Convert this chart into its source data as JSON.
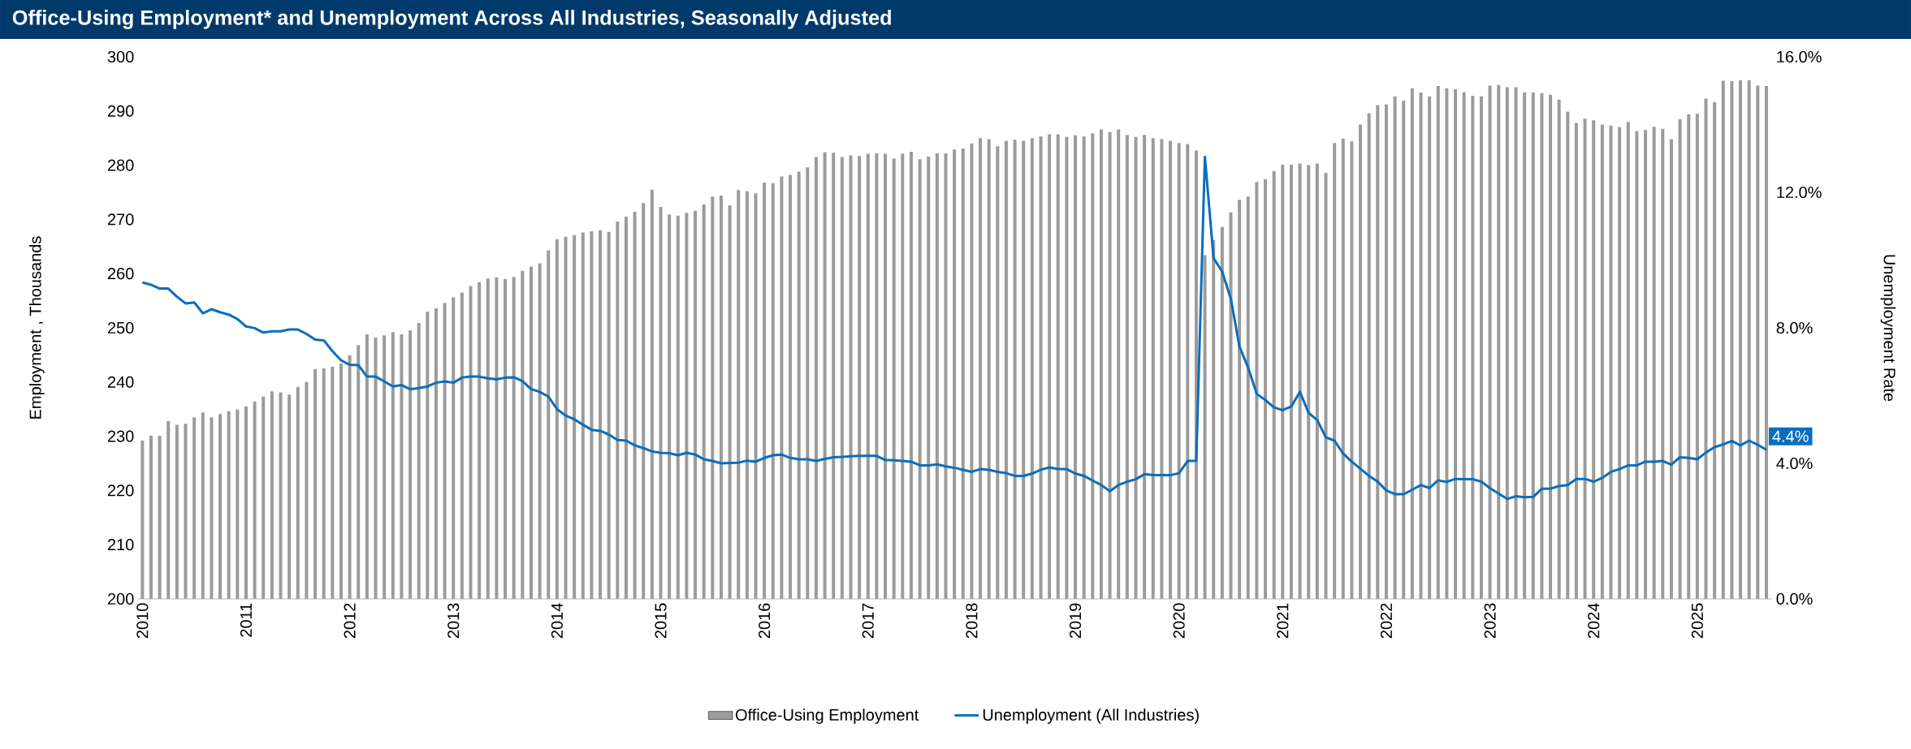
{
  "chart_data": {
    "type": "bar",
    "title": "Office-Using Employment* and Unemployment Across All Industries, Seasonally Adjusted",
    "ylabel": "Employment , Thousands",
    "y2label": "Unemployment Rate",
    "x": [
      "2010-01",
      "2010-02",
      "2010-03",
      "2010-04",
      "2010-05",
      "2010-06",
      "2010-07",
      "2010-08",
      "2010-09",
      "2010-10",
      "2010-11",
      "2010-12",
      "2011-01",
      "2011-02",
      "2011-03",
      "2011-04",
      "2011-05",
      "2011-06",
      "2011-07",
      "2011-08",
      "2011-09",
      "2011-10",
      "2011-11",
      "2011-12",
      "2012-01",
      "2012-02",
      "2012-03",
      "2012-04",
      "2012-05",
      "2012-06",
      "2012-07",
      "2012-08",
      "2012-09",
      "2012-10",
      "2012-11",
      "2012-12",
      "2013-01",
      "2013-02",
      "2013-03",
      "2013-04",
      "2013-05",
      "2013-06",
      "2013-07",
      "2013-08",
      "2013-09",
      "2013-10",
      "2013-11",
      "2013-12",
      "2014-01",
      "2014-02",
      "2014-03",
      "2014-04",
      "2014-05",
      "2014-06",
      "2014-07",
      "2014-08",
      "2014-09",
      "2014-10",
      "2014-11",
      "2014-12",
      "2015-01",
      "2015-02",
      "2015-03",
      "2015-04",
      "2015-05",
      "2015-06",
      "2015-07",
      "2015-08",
      "2015-09",
      "2015-10",
      "2015-11",
      "2015-12",
      "2016-01",
      "2016-02",
      "2016-03",
      "2016-04",
      "2016-05",
      "2016-06",
      "2016-07",
      "2016-08",
      "2016-09",
      "2016-10",
      "2016-11",
      "2016-12",
      "2017-01",
      "2017-02",
      "2017-03",
      "2017-04",
      "2017-05",
      "2017-06",
      "2017-07",
      "2017-08",
      "2017-09",
      "2017-10",
      "2017-11",
      "2017-12",
      "2018-01",
      "2018-02",
      "2018-03",
      "2018-04",
      "2018-05",
      "2018-06",
      "2018-07",
      "2018-08",
      "2018-09",
      "2018-10",
      "2018-11",
      "2018-12",
      "2019-01",
      "2019-02",
      "2019-03",
      "2019-04",
      "2019-05",
      "2019-06",
      "2019-07",
      "2019-08",
      "2019-09",
      "2019-10",
      "2019-11",
      "2019-12",
      "2020-01",
      "2020-02",
      "2020-03",
      "2020-04",
      "2020-05",
      "2020-06",
      "2020-07",
      "2020-08",
      "2020-09",
      "2020-10",
      "2020-11",
      "2020-12",
      "2021-01",
      "2021-02",
      "2021-03",
      "2021-04",
      "2021-05",
      "2021-06",
      "2021-07",
      "2021-08",
      "2021-09",
      "2021-10",
      "2021-11",
      "2021-12",
      "2022-01",
      "2022-02",
      "2022-03",
      "2022-04",
      "2022-05",
      "2022-06",
      "2022-07",
      "2022-08",
      "2022-09",
      "2022-10",
      "2022-11",
      "2022-12",
      "2023-01",
      "2023-02",
      "2023-03",
      "2023-04",
      "2023-05",
      "2023-06",
      "2023-07",
      "2023-08",
      "2023-09",
      "2023-10",
      "2023-11",
      "2023-12",
      "2024-01",
      "2024-02",
      "2024-03",
      "2024-04",
      "2024-05",
      "2024-06",
      "2024-07",
      "2024-08",
      "2024-09",
      "2024-10",
      "2024-11",
      "2024-12",
      "2025-01",
      "2025-02",
      "2025-03",
      "2025-04",
      "2025-05",
      "2025-06",
      "2025-07",
      "2025-08",
      "2025-09"
    ],
    "xlim": [
      "2009-12-16",
      "2025-09-21"
    ],
    "xticks": [
      "2010",
      "2011",
      "2012",
      "2013",
      "2014",
      "2015",
      "2016",
      "2017",
      "2018",
      "2019",
      "2020",
      "2021",
      "2022",
      "2023",
      "2024",
      "2025"
    ],
    "ylim": [
      200,
      300
    ],
    "yticks": [
      200,
      210,
      220,
      230,
      240,
      250,
      260,
      270,
      280,
      290,
      300
    ],
    "y2lim": [
      0,
      16
    ],
    "y2ticks": [
      {
        "value": 0,
        "label": "0.0%"
      },
      {
        "value": 4,
        "label": "4.0%"
      },
      {
        "value": 8,
        "label": "8.0%"
      },
      {
        "value": 12,
        "label": "12.0%"
      },
      {
        "value": 16,
        "label": "16.0%"
      }
    ],
    "series": [
      {
        "name": "Office-Using Employment",
        "color": "#9b9b9b",
        "values": [
          229.2,
          230.1,
          230.1,
          232.8,
          232.1,
          232.3,
          233.5,
          234.4,
          233.5,
          234.1,
          234.6,
          234.9,
          235.5,
          236.4,
          237.3,
          238.3,
          238.1,
          237.7,
          239.1,
          240.0,
          242.4,
          242.5,
          242.8,
          243.4,
          244.9,
          246.8,
          248.8,
          248.2,
          248.6,
          249.2,
          248.8,
          249.5,
          250.9,
          253.0,
          253.6,
          254.6,
          255.6,
          256.5,
          257.7,
          258.4,
          259.1,
          259.3,
          259.0,
          259.4,
          260.5,
          261.3,
          261.9,
          264.3,
          266.3,
          266.8,
          267.1,
          267.6,
          267.8,
          268.0,
          267.7,
          269.6,
          270.5,
          271.4,
          273.0,
          275.5,
          272.3,
          270.9,
          270.7,
          271.2,
          271.6,
          272.8,
          274.2,
          274.4,
          272.6,
          275.4,
          275.2,
          274.8,
          276.8,
          276.7,
          277.9,
          278.2,
          278.8,
          279.6,
          281.5,
          282.4,
          282.3,
          281.5,
          281.8,
          281.7,
          282.1,
          282.2,
          282.1,
          281.2,
          282.1,
          282.5,
          281.1,
          281.6,
          282.2,
          282.2,
          282.9,
          283.1,
          284.0,
          285.0,
          284.8,
          283.5,
          284.5,
          284.7,
          284.5,
          285.0,
          285.3,
          285.7,
          285.7,
          285.2,
          285.5,
          285.3,
          285.9,
          286.6,
          286.1,
          286.6,
          285.6,
          285.2,
          285.6,
          285.0,
          284.8,
          284.5,
          284.1,
          283.9,
          282.7,
          263.4,
          266.2,
          268.6,
          271.3,
          273.6,
          274.2,
          276.9,
          277.4,
          278.9,
          280.1,
          280.1,
          280.3,
          280.0,
          280.3,
          278.6,
          284.1,
          284.9,
          284.4,
          287.5,
          289.6,
          291.1,
          291.2,
          292.7,
          291.9,
          294.2,
          293.4,
          292.7,
          294.6,
          294.2,
          294.0,
          293.5,
          292.8,
          292.7,
          294.7,
          294.8,
          294.4,
          294.4,
          293.4,
          293.4,
          293.3,
          293.0,
          292.1,
          289.9,
          287.8,
          288.6,
          288.3,
          287.5,
          287.3,
          287.0,
          288.0,
          286.3,
          286.5,
          287.1,
          286.7,
          284.8,
          288.5,
          289.4,
          289.5,
          292.3,
          291.6,
          295.6,
          295.5,
          295.7,
          295.7,
          294.7,
          294.6
        ]
      },
      {
        "name": "Unemployment (All Industries)",
        "type": "line",
        "axis": "y2",
        "color": "#0a6ebd",
        "values": [
          9.34,
          9.27,
          9.16,
          9.16,
          8.92,
          8.72,
          8.75,
          8.43,
          8.55,
          8.46,
          8.39,
          8.26,
          8.04,
          7.99,
          7.86,
          7.9,
          7.9,
          7.95,
          7.95,
          7.82,
          7.65,
          7.63,
          7.31,
          7.04,
          6.91,
          6.9,
          6.56,
          6.56,
          6.42,
          6.27,
          6.31,
          6.19,
          6.22,
          6.27,
          6.38,
          6.42,
          6.38,
          6.53,
          6.56,
          6.56,
          6.51,
          6.48,
          6.53,
          6.54,
          6.43,
          6.19,
          6.11,
          5.97,
          5.6,
          5.41,
          5.3,
          5.14,
          4.99,
          4.96,
          4.85,
          4.69,
          4.67,
          4.53,
          4.45,
          4.35,
          4.31,
          4.3,
          4.24,
          4.31,
          4.26,
          4.12,
          4.07,
          4.0,
          4.01,
          4.02,
          4.08,
          4.05,
          4.16,
          4.24,
          4.26,
          4.16,
          4.12,
          4.12,
          4.07,
          4.13,
          4.18,
          4.19,
          4.21,
          4.22,
          4.22,
          4.22,
          4.1,
          4.09,
          4.07,
          4.05,
          3.94,
          3.94,
          3.97,
          3.91,
          3.87,
          3.81,
          3.75,
          3.83,
          3.81,
          3.75,
          3.71,
          3.63,
          3.63,
          3.7,
          3.81,
          3.88,
          3.83,
          3.83,
          3.7,
          3.63,
          3.49,
          3.36,
          3.18,
          3.36,
          3.46,
          3.53,
          3.68,
          3.65,
          3.65,
          3.65,
          3.71,
          4.07,
          4.07,
          13.05,
          10.06,
          9.66,
          8.86,
          7.45,
          6.83,
          6.05,
          5.87,
          5.65,
          5.57,
          5.68,
          6.11,
          5.49,
          5.28,
          4.77,
          4.67,
          4.29,
          4.05,
          3.84,
          3.63,
          3.46,
          3.2,
          3.09,
          3.09,
          3.22,
          3.36,
          3.27,
          3.5,
          3.45,
          3.54,
          3.53,
          3.53,
          3.46,
          3.27,
          3.11,
          2.95,
          3.03,
          3.0,
          3.01,
          3.25,
          3.25,
          3.33,
          3.36,
          3.54,
          3.54,
          3.46,
          3.57,
          3.75,
          3.83,
          3.94,
          3.94,
          4.05,
          4.05,
          4.07,
          3.96,
          4.18,
          4.16,
          4.12,
          4.32,
          4.48,
          4.56,
          4.66,
          4.53,
          4.67,
          4.55,
          4.4
        ]
      }
    ],
    "legend": "bottom",
    "annotations": [
      "4.4%"
    ]
  }
}
